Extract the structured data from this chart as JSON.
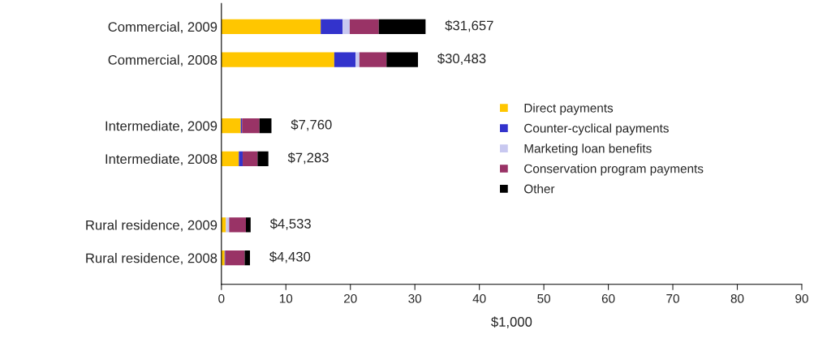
{
  "chart_data": {
    "type": "bar",
    "orientation": "horizontal",
    "stacked": true,
    "xlabel": "$1,000",
    "categories": [
      "Commercial, 2009",
      "Commercial, 2008",
      null,
      "Intermediate, 2009",
      "Intermediate, 2008",
      null,
      "Rural residence, 2009",
      "Rural residence, 2008"
    ],
    "series": [
      {
        "name": "Direct payments",
        "color": "#ffc600",
        "values": [
          15.4,
          17.5,
          null,
          3.0,
          2.7,
          null,
          0.7,
          0.5
        ]
      },
      {
        "name": "Counter-cyclical payments",
        "color": "#3333cc",
        "values": [
          3.4,
          3.3,
          null,
          0.2,
          0.6,
          null,
          0.0,
          0.1
        ]
      },
      {
        "name": "Marketing loan benefits",
        "color": "#c8c8f0",
        "values": [
          1.1,
          0.6,
          null,
          0.0,
          0.0,
          null,
          0.5,
          0.0
        ]
      },
      {
        "name": "Conservation program payments",
        "color": "#993366",
        "values": [
          4.5,
          4.2,
          null,
          2.7,
          2.3,
          null,
          2.6,
          3.0
        ]
      },
      {
        "name": "Other",
        "color": "#000000",
        "values": [
          7.257,
          4.883,
          null,
          1.86,
          1.683,
          null,
          0.733,
          0.83
        ]
      }
    ],
    "totals": [
      "$31,657",
      "$30,483",
      null,
      "$7,760",
      "$7,283",
      null,
      "$4,533",
      "$4,430"
    ],
    "xlim": [
      0,
      90
    ],
    "xticks": [
      0,
      10,
      20,
      30,
      40,
      50,
      60,
      70,
      80,
      90
    ],
    "grid": false,
    "legend": "right"
  }
}
